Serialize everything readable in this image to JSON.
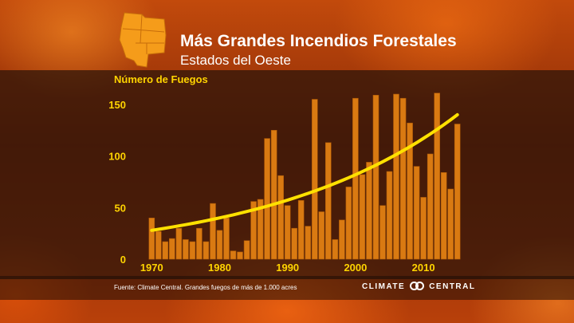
{
  "header": {
    "title": "Más Grandes Incendios Forestales",
    "subtitle": "Estados del Oeste"
  },
  "footer": {
    "source": "Fuente: Climate Central. Grandes fuegos de más de 1.000 acres",
    "logo_left": "CLIMATE",
    "logo_right": "CENTRAL"
  },
  "icons": {
    "region_map": "western-us-map-icon",
    "logo_mark": "climate-central-rings-icon"
  },
  "colors": {
    "bars": "#d97a12",
    "trend": "#ffe100",
    "ylabel": "#ffd400",
    "axis_text": "#ffd400",
    "map": "#f59c1a"
  },
  "chart_data": {
    "type": "bar",
    "ylabel": "Número de Fuegos",
    "xlabel": "",
    "ylim": [
      0,
      160
    ],
    "yticks": [
      0,
      50,
      100,
      150
    ],
    "xticks": [
      1970,
      1980,
      1990,
      2000,
      2010
    ],
    "grid": false,
    "categories": [
      1970,
      1971,
      1972,
      1973,
      1974,
      1975,
      1976,
      1977,
      1978,
      1979,
      1980,
      1981,
      1982,
      1983,
      1984,
      1985,
      1986,
      1987,
      1988,
      1989,
      1990,
      1991,
      1992,
      1993,
      1994,
      1995,
      1996,
      1997,
      1998,
      1999,
      2000,
      2001,
      2002,
      2003,
      2004,
      2005,
      2006,
      2007,
      2008,
      2009,
      2010,
      2011,
      2012,
      2013,
      2014,
      2015
    ],
    "values": [
      40,
      27,
      17,
      20,
      30,
      19,
      17,
      30,
      17,
      54,
      28,
      40,
      8,
      7,
      18,
      56,
      58,
      117,
      125,
      81,
      52,
      30,
      57,
      32,
      155,
      46,
      113,
      19,
      38,
      70,
      156,
      82,
      94,
      159,
      52,
      85,
      160,
      156,
      132,
      90,
      60,
      102,
      161,
      84,
      68,
      131
    ],
    "trend": {
      "type": "exponential",
      "start_value": 28,
      "end_value": 140
    }
  }
}
